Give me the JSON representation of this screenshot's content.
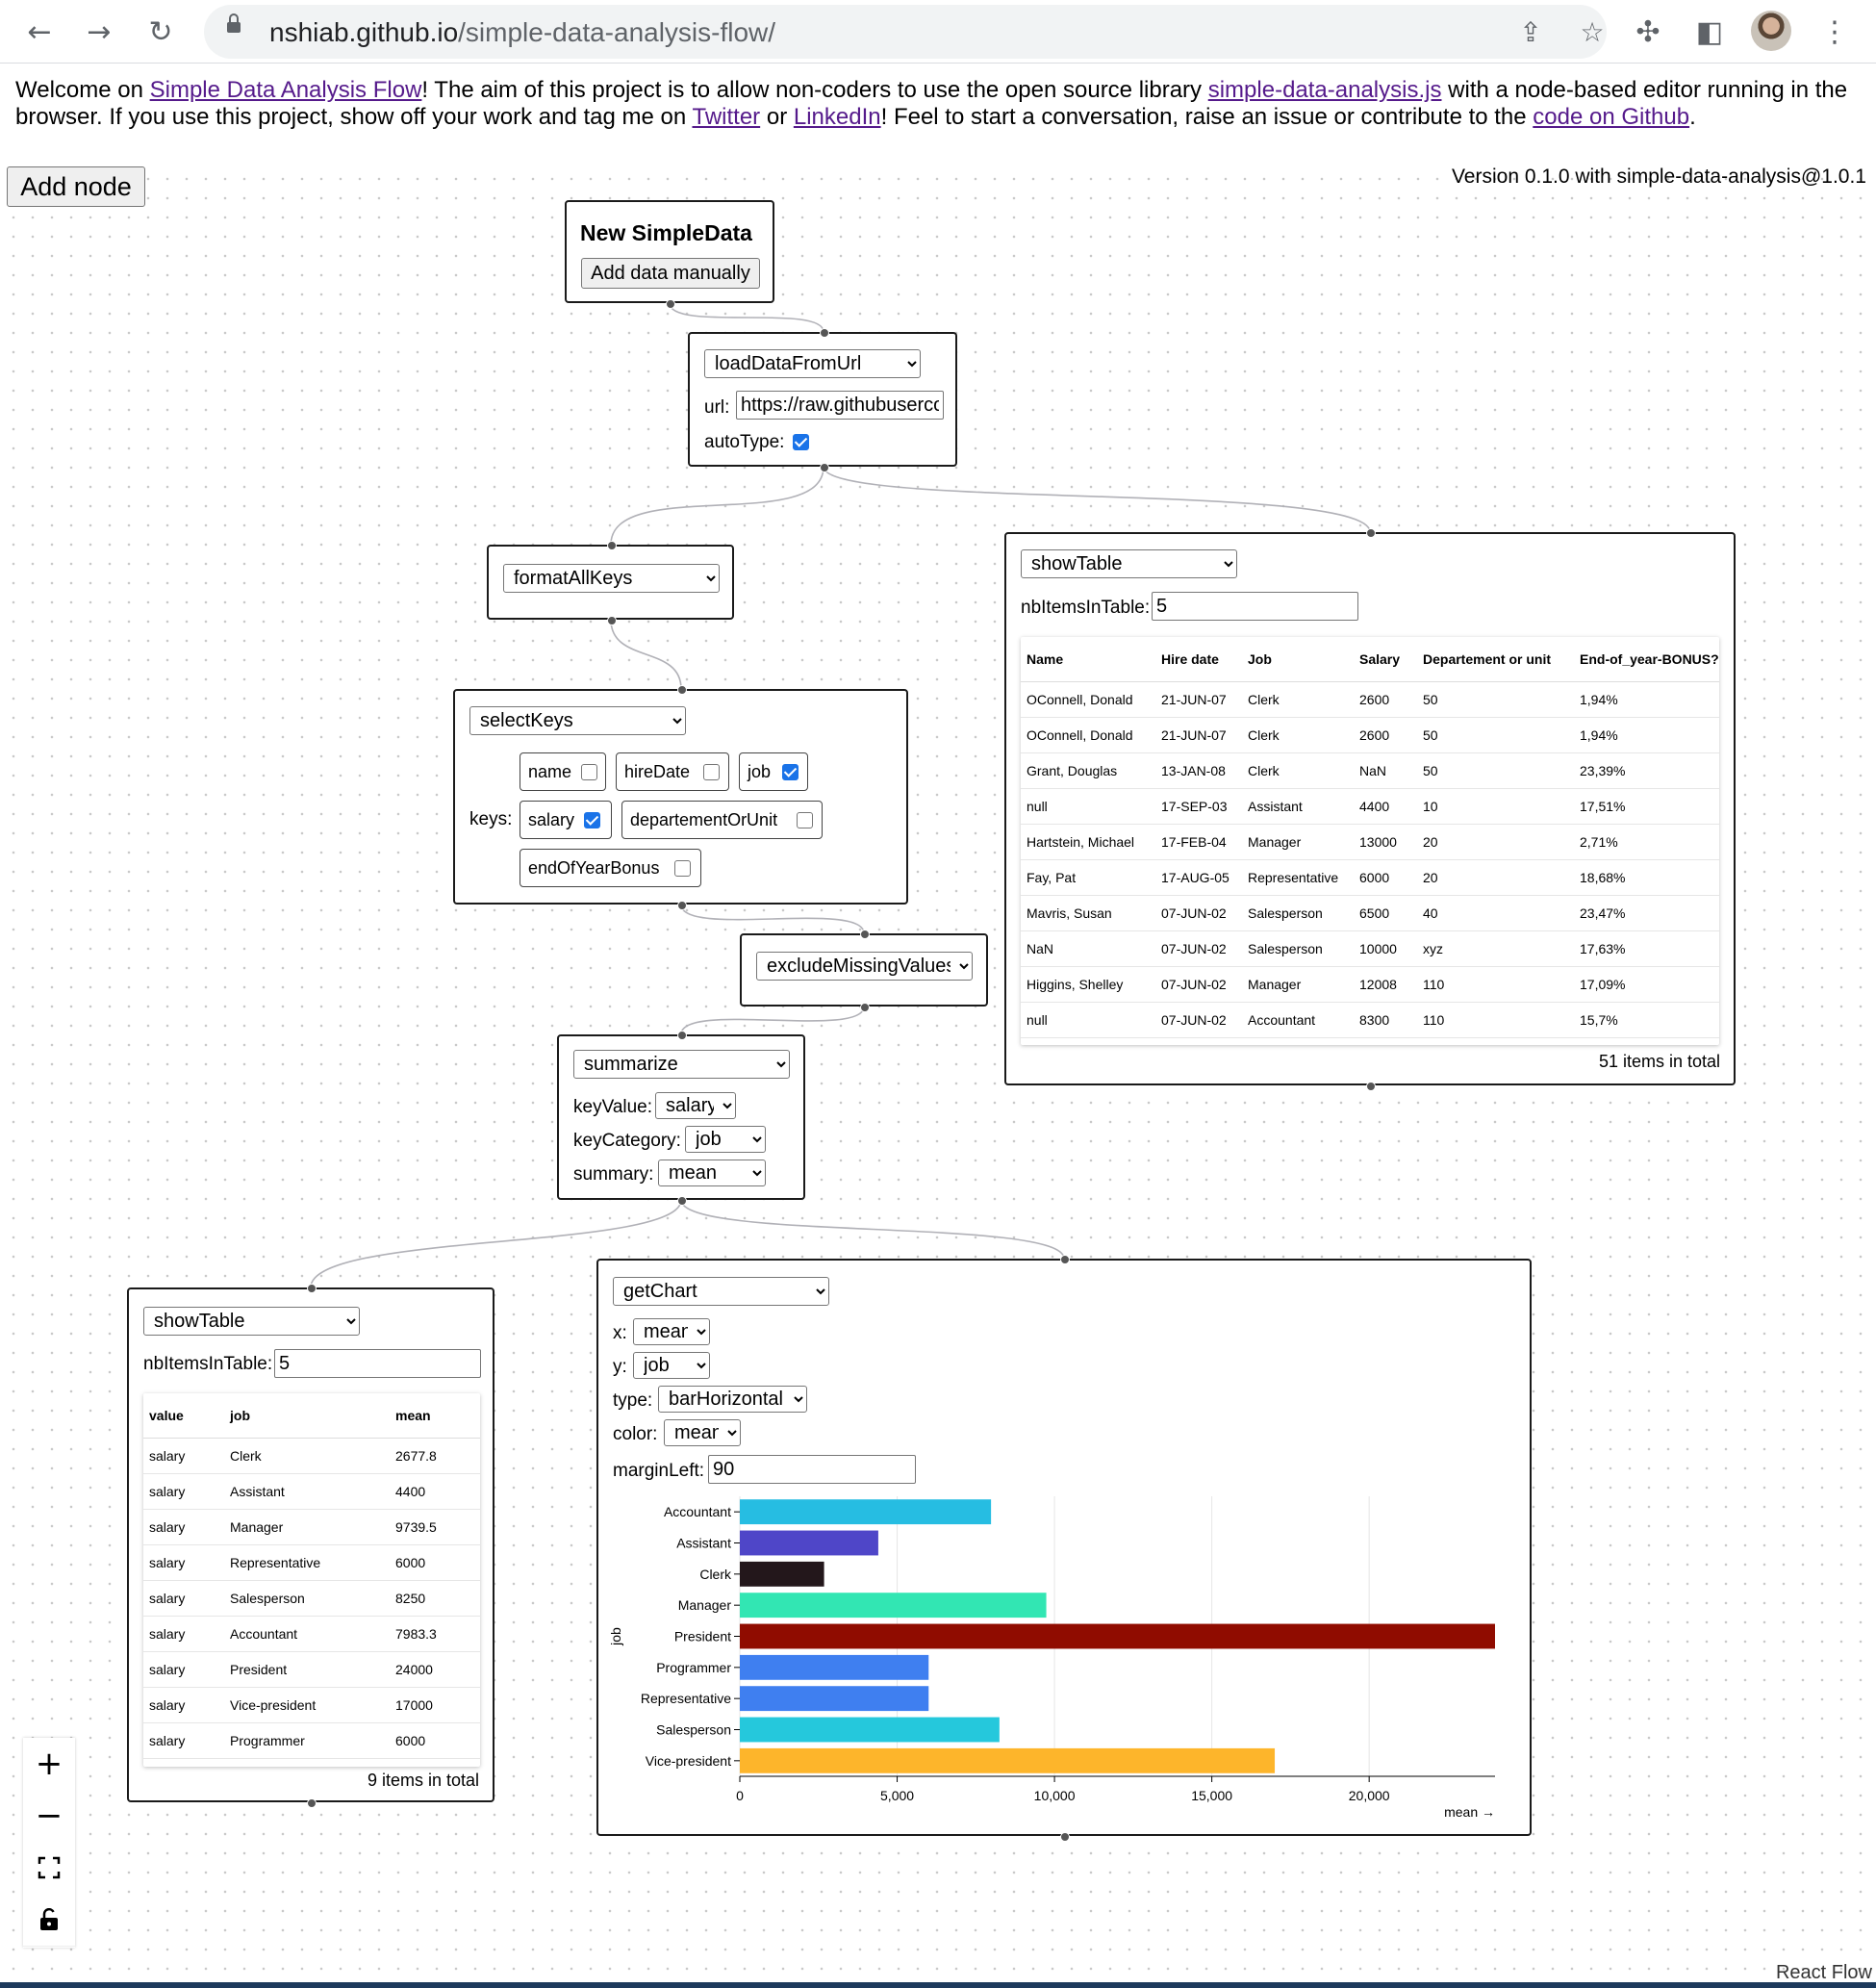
{
  "browser": {
    "url_host": "nshiab.github.io",
    "url_path": "/simple-data-analysis-flow/"
  },
  "intro": {
    "t1": "Welcome on ",
    "link_sdaf": "Simple Data Analysis Flow",
    "t2": "! The aim of this project is to allow non-coders to use the open source library ",
    "link_lib": "simple-data-analysis.js",
    "t3": " with a node-based editor running in the browser. If you use this project, show off your work and tag me on ",
    "link_twitter": "Twitter",
    "t4": " or ",
    "link_linkedin": "LinkedIn",
    "t5": "! Feel to start a conversation, raise an issue or contribute to the ",
    "link_code": "code on Github",
    "t6": "."
  },
  "version": "Version 0.1.0 with simple-data-analysis@1.0.1",
  "add_node": "Add node",
  "nodes": {
    "new_data": {
      "title": "New SimpleData",
      "button": "Add data manually"
    },
    "load": {
      "method": "loadDataFromUrl",
      "url_label": "url:",
      "url_value": "https://raw.githubusercontent.com",
      "autotype_label": "autoType:"
    },
    "format": {
      "method": "formatAllKeys"
    },
    "select_keys": {
      "method": "selectKeys",
      "keys_label": "keys:",
      "keys": [
        {
          "label": "name",
          "checked": false
        },
        {
          "label": "hireDate",
          "checked": false
        },
        {
          "label": "job",
          "checked": true
        },
        {
          "label": "salary",
          "checked": true
        },
        {
          "label": "departementOrUnit",
          "checked": false
        },
        {
          "label": "endOfYearBonus",
          "checked": false
        }
      ]
    },
    "exclude": {
      "method": "excludeMissingValues"
    },
    "summarize": {
      "method": "summarize",
      "key_value_label": "keyValue:",
      "key_value": "salary",
      "key_category_label": "keyCategory:",
      "key_category": "job",
      "summary_label": "summary:",
      "summary": "mean"
    },
    "table1": {
      "method": "showTable",
      "nb_label": "nbItemsInTable:",
      "nb_value": "5",
      "columns": [
        "Name",
        "Hire date",
        "Job",
        "Salary",
        "Departement or unit",
        "End-of_year-BONUS?"
      ],
      "rows": [
        [
          "OConnell, Donald",
          "21-JUN-07",
          "Clerk",
          "2600",
          "50",
          "1,94%"
        ],
        [
          "OConnell, Donald",
          "21-JUN-07",
          "Clerk",
          "2600",
          "50",
          "1,94%"
        ],
        [
          "Grant, Douglas",
          "13-JAN-08",
          "Clerk",
          "NaN",
          "50",
          "23,39%"
        ],
        [
          "null",
          "17-SEP-03",
          "Assistant",
          "4400",
          "10",
          "17,51%"
        ],
        [
          "Hartstein, Michael",
          "17-FEB-04",
          "Manager",
          "13000",
          "20",
          "2,71%"
        ],
        [
          "Fay, Pat",
          "17-AUG-05",
          "Representative",
          "6000",
          "20",
          "18,68%"
        ],
        [
          "Mavris, Susan",
          "07-JUN-02",
          "Salesperson",
          "6500",
          "40",
          "23,47%"
        ],
        [
          "NaN",
          "07-JUN-02",
          "Salesperson",
          "10000",
          "xyz",
          "17,63%"
        ],
        [
          "Higgins, Shelley",
          "07-JUN-02",
          "Manager",
          "12008",
          "110",
          "17,09%"
        ],
        [
          "null",
          "07-JUN-02",
          "Accountant",
          "8300",
          "110",
          "15,7%"
        ]
      ],
      "total": "51 items in total"
    },
    "table2": {
      "method": "showTable",
      "nb_label": "nbItemsInTable:",
      "nb_value": "5",
      "columns": [
        "value",
        "job",
        "mean"
      ],
      "rows": [
        [
          "salary",
          "Clerk",
          "2677.8"
        ],
        [
          "salary",
          "Assistant",
          "4400"
        ],
        [
          "salary",
          "Manager",
          "9739.5"
        ],
        [
          "salary",
          "Representative",
          "6000"
        ],
        [
          "salary",
          "Salesperson",
          "8250"
        ],
        [
          "salary",
          "Accountant",
          "7983.3"
        ],
        [
          "salary",
          "President",
          "24000"
        ],
        [
          "salary",
          "Vice-president",
          "17000"
        ],
        [
          "salary",
          "Programmer",
          "6000"
        ]
      ],
      "total": "9 items in total"
    },
    "chart": {
      "method": "getChart",
      "x_label": "x:",
      "x": "mean",
      "y_label": "y:",
      "y": "job",
      "type_label": "type:",
      "type": "barHorizontal",
      "color_label": "color:",
      "color": "mean",
      "margin_label": "marginLeft:",
      "margin": "90"
    }
  },
  "chart_data": {
    "type": "bar",
    "orientation": "horizontal",
    "categories": [
      "Accountant",
      "Assistant",
      "Clerk",
      "Manager",
      "President",
      "Programmer",
      "Representative",
      "Salesperson",
      "Vice-president"
    ],
    "values": [
      7983.3,
      4400,
      2677.8,
      9739.5,
      24000,
      6000,
      6000,
      8250,
      17000
    ],
    "colors": [
      "#26bde2",
      "#4f46c8",
      "#23171b",
      "#32e6b3",
      "#900c00",
      "#3f7ff0",
      "#3f7ff0",
      "#25c8dc",
      "#fdb52b"
    ],
    "xlim": [
      0,
      24000
    ],
    "xticks": [
      0,
      5000,
      10000,
      15000,
      20000
    ],
    "xtick_labels": [
      "0",
      "5,000",
      "10,000",
      "15,000",
      "20,000"
    ],
    "xlabel": "mean →",
    "ylabel": "job",
    "grid": true
  },
  "controls": {
    "zoom_in": "+",
    "zoom_out": "−"
  },
  "attribution": "React Flow"
}
